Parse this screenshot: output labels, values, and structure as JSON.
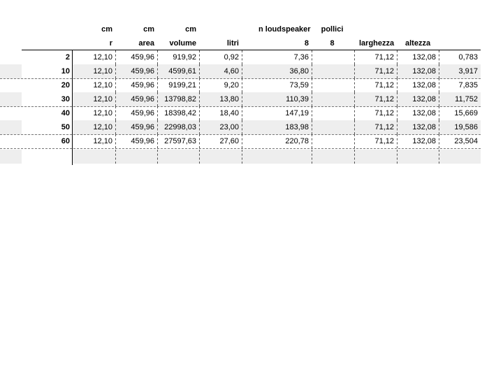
{
  "header": {
    "row1": {
      "c1": "cm",
      "c2": "cm",
      "c3": "cm",
      "c4": "",
      "c5": "n  loudspeaker",
      "c6": "pollici",
      "c7": "",
      "c8": "",
      "c9": ""
    },
    "row2": {
      "c1": "r",
      "c2": "area",
      "c3": "volume",
      "c4": "litri",
      "c5": "8",
      "c6": "8",
      "c7": "larghezza",
      "c8": "altezza",
      "c9": ""
    }
  },
  "rows": [
    {
      "label": "2",
      "r": "12,10",
      "area": "459,96",
      "volume": "919,92",
      "litri": "0,92",
      "n": "7,36",
      "p": "",
      "larghezza": "71,12",
      "altezza": "132,08",
      "extra": "0,783"
    },
    {
      "label": "10",
      "r": "12,10",
      "area": "459,96",
      "volume": "4599,61",
      "litri": "4,60",
      "n": "36,80",
      "p": "",
      "larghezza": "71,12",
      "altezza": "132,08",
      "extra": "3,917"
    },
    {
      "label": "20",
      "r": "12,10",
      "area": "459,96",
      "volume": "9199,21",
      "litri": "9,20",
      "n": "73,59",
      "p": "",
      "larghezza": "71,12",
      "altezza": "132,08",
      "extra": "7,835"
    },
    {
      "label": "30",
      "r": "12,10",
      "area": "459,96",
      "volume": "13798,82",
      "litri": "13,80",
      "n": "110,39",
      "p": "",
      "larghezza": "71,12",
      "altezza": "132,08",
      "extra": "11,752"
    },
    {
      "label": "40",
      "r": "12,10",
      "area": "459,96",
      "volume": "18398,42",
      "litri": "18,40",
      "n": "147,19",
      "p": "",
      "larghezza": "71,12",
      "altezza": "132,08",
      "extra": "15,669"
    },
    {
      "label": "50",
      "r": "12,10",
      "area": "459,96",
      "volume": "22998,03",
      "litri": "23,00",
      "n": "183,98",
      "p": "",
      "larghezza": "71,12",
      "altezza": "132,08",
      "extra": "19,586"
    },
    {
      "label": "60",
      "r": "12,10",
      "area": "459,96",
      "volume": "27597,63",
      "litri": "27,60",
      "n": "220,78",
      "p": "",
      "larghezza": "71,12",
      "altezza": "132,08",
      "extra": "23,504"
    },
    {
      "label": "",
      "r": "",
      "area": "",
      "volume": "",
      "litri": "",
      "n": "",
      "p": "",
      "larghezza": "",
      "altezza": "",
      "extra": ""
    }
  ]
}
